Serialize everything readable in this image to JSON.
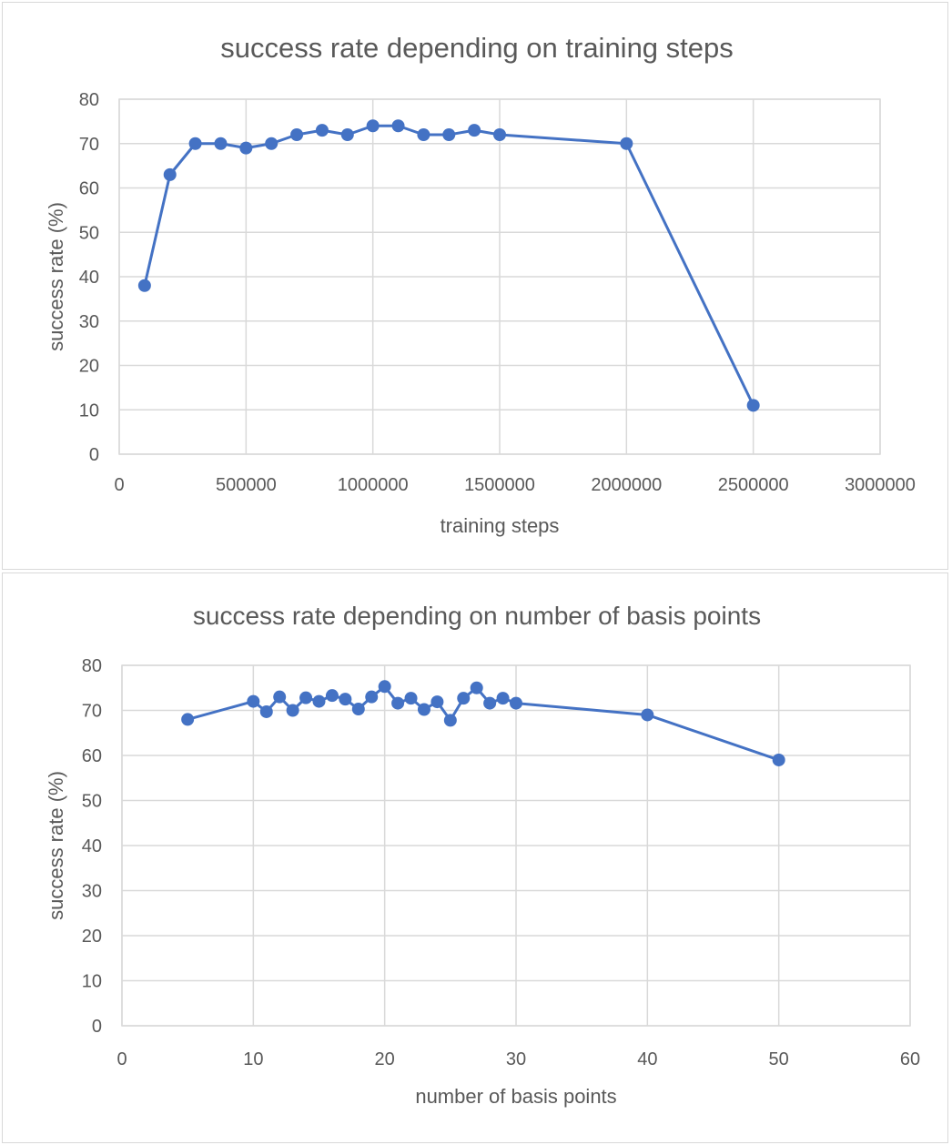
{
  "colors": {
    "series": "#4472c4",
    "grid": "#d9d9d9",
    "text": "#595959"
  },
  "chart_data": [
    {
      "type": "line",
      "title": "success rate depending on training steps",
      "xlabel": "training steps",
      "ylabel": "success rate (%)",
      "xlim": [
        0,
        3000000
      ],
      "ylim": [
        0,
        80
      ],
      "x_ticks": [
        0,
        500000,
        1000000,
        1500000,
        2000000,
        2500000,
        3000000
      ],
      "y_ticks": [
        0,
        10,
        20,
        30,
        40,
        50,
        60,
        70,
        80
      ],
      "x_tick_labels": [
        "0",
        "500000",
        "1000000",
        "1500000",
        "2000000",
        "2500000",
        "3000000"
      ],
      "y_tick_labels": [
        "0",
        "10",
        "20",
        "30",
        "40",
        "50",
        "60",
        "70",
        "80"
      ],
      "grid": true,
      "legend": "none",
      "series": [
        {
          "x": [
            100000,
            200000,
            300000,
            400000,
            500000,
            600000,
            700000,
            800000,
            900000,
            1000000,
            1100000,
            1200000,
            1300000,
            1400000,
            1500000,
            2000000,
            2500000
          ],
          "y": [
            38,
            63,
            70,
            70,
            69,
            70,
            72,
            73,
            72,
            74,
            74,
            72,
            72,
            73,
            72,
            70,
            11
          ]
        }
      ]
    },
    {
      "type": "line",
      "title": "success rate depending on number of basis points",
      "xlabel": "number of basis points",
      "ylabel": "success rate (%)",
      "xlim": [
        0,
        60
      ],
      "ylim": [
        0,
        80
      ],
      "x_ticks": [
        0,
        10,
        20,
        30,
        40,
        50,
        60
      ],
      "y_ticks": [
        0,
        10,
        20,
        30,
        40,
        50,
        60,
        70,
        80
      ],
      "x_tick_labels": [
        "0",
        "10",
        "20",
        "30",
        "40",
        "50",
        "60"
      ],
      "y_tick_labels": [
        "0",
        "10",
        "20",
        "30",
        "40",
        "50",
        "60",
        "70",
        "80"
      ],
      "grid": true,
      "legend": "none",
      "series": [
        {
          "x": [
            5,
            10,
            11,
            12,
            13,
            14,
            15,
            16,
            17,
            18,
            19,
            20,
            21,
            22,
            23,
            24,
            25,
            26,
            27,
            28,
            29,
            30,
            40,
            50
          ],
          "y": [
            68,
            72,
            69.7,
            73,
            70,
            72.8,
            72,
            73.3,
            72.5,
            70.3,
            73,
            75.3,
            71.6,
            72.7,
            70.2,
            71.9,
            67.8,
            72.7,
            75,
            71.6,
            72.7,
            71.6,
            69,
            59
          ]
        }
      ]
    }
  ]
}
